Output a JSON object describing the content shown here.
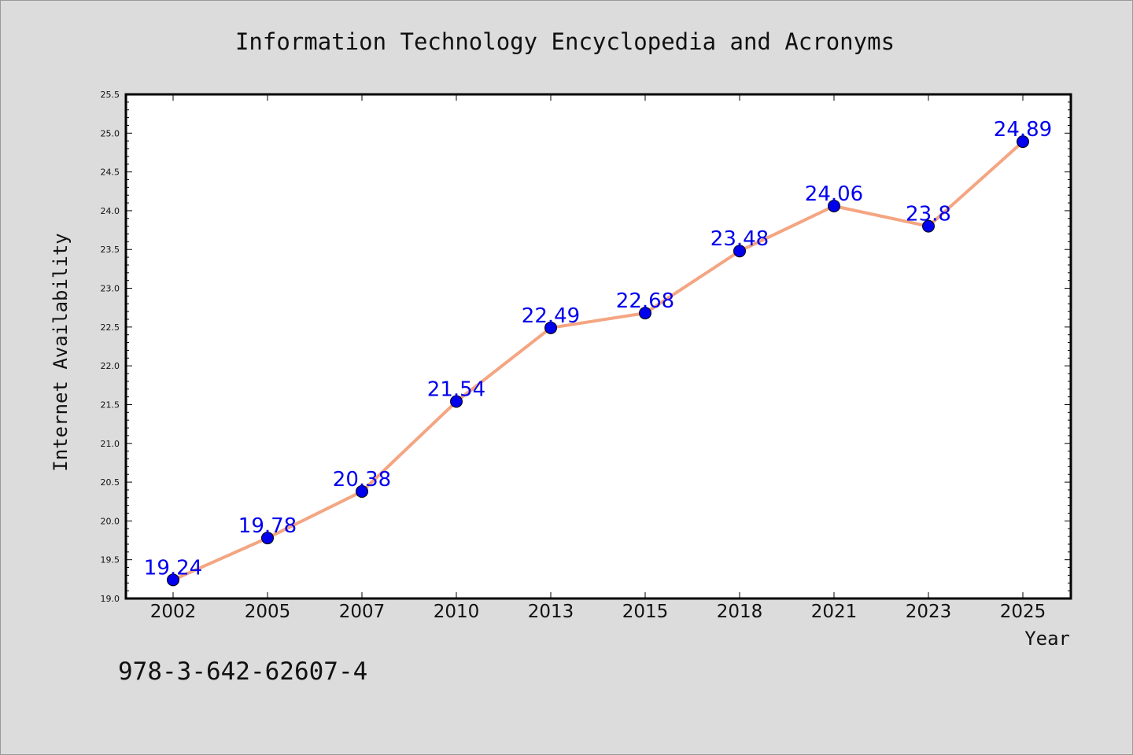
{
  "chart_data": {
    "type": "line",
    "title": "Information Technology Encyclopedia and Acronyms",
    "xlabel": "Year",
    "ylabel": "Internet Availability",
    "categories": [
      "2002",
      "2005",
      "2007",
      "2010",
      "2013",
      "2015",
      "2018",
      "2021",
      "2023",
      "2025"
    ],
    "series": [
      {
        "values": [
          19.24,
          19.78,
          20.38,
          21.54,
          22.49,
          22.68,
          23.48,
          24.06,
          23.8,
          24.89
        ],
        "data_labels": [
          "19.24",
          "19.78",
          "20.38",
          "21.54",
          "22.49",
          "22.68",
          "23.48",
          "24.06",
          "23.8",
          "24.89"
        ]
      }
    ],
    "ylim": [
      19.0,
      25.5
    ],
    "yticks": [
      "19.0",
      "19.5",
      "20.0",
      "20.5",
      "21.0",
      "21.5",
      "22.0",
      "22.5",
      "23.0",
      "23.5",
      "24.0",
      "24.5",
      "25.0",
      "25.5"
    ],
    "ytick_values": [
      19.0,
      19.5,
      20.0,
      20.5,
      21.0,
      21.5,
      22.0,
      22.5,
      23.0,
      23.5,
      24.0,
      24.5,
      25.0,
      25.5
    ],
    "minor_tick_step": 0.1,
    "grid": false,
    "legend": "none",
    "colors": {
      "line": "#f4a582",
      "marker": "#0000ee",
      "marker_edge": "#000000",
      "data_label": "#0000ee",
      "background": "#dcdcdc",
      "plot_background": "#ffffff"
    },
    "annotation": "978-3-642-62607-4"
  }
}
